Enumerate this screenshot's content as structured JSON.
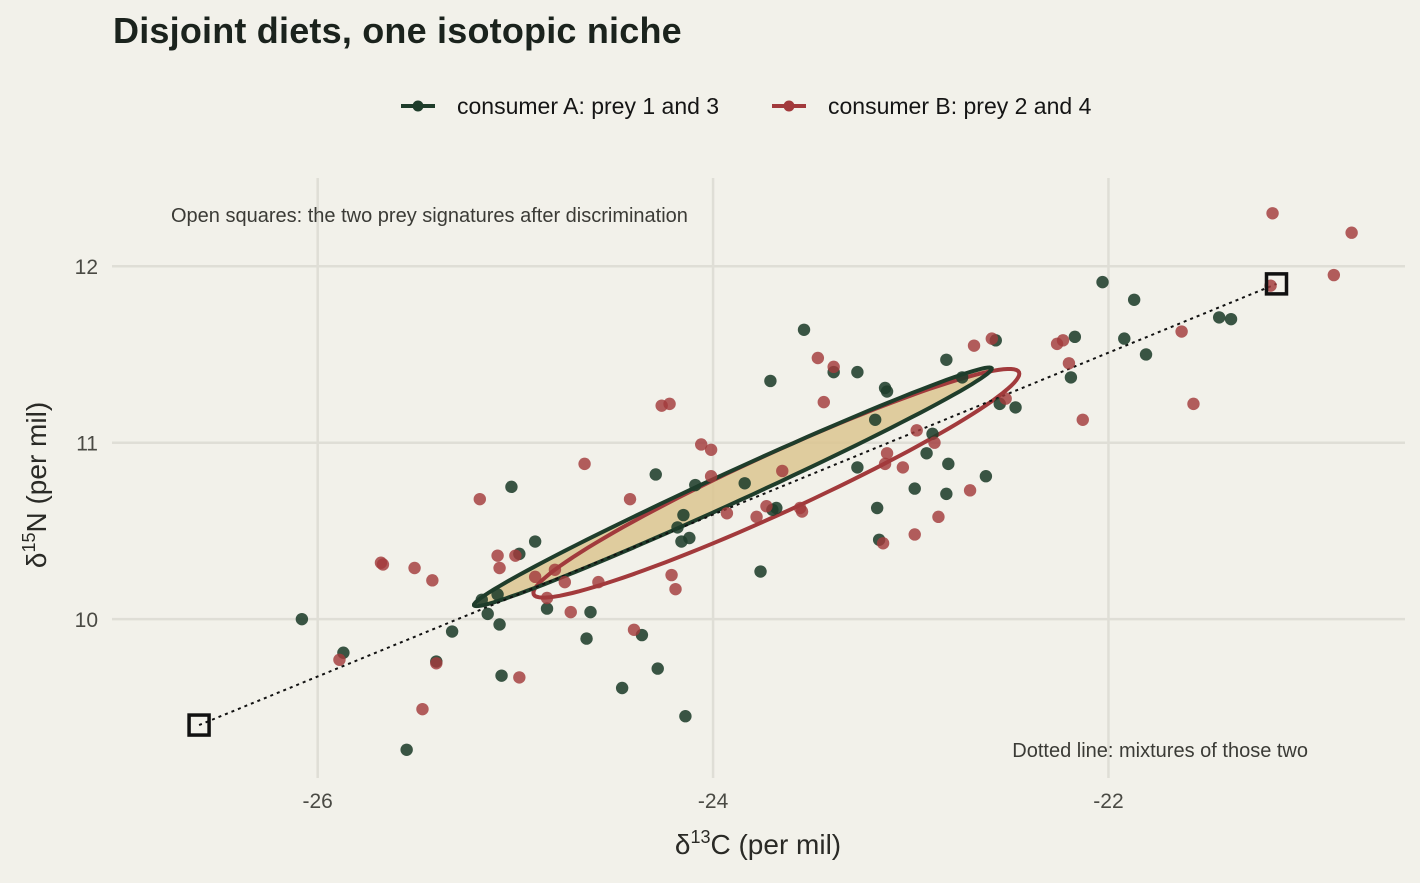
{
  "chart_data": {
    "type": "scatter",
    "title": "Disjoint diets, one isotopic niche",
    "xlabel": {
      "delta": "δ",
      "mass": "13",
      "rest": "C (per mil)"
    },
    "ylabel": {
      "delta": "δ",
      "mass": "15",
      "rest": "N (per mil)"
    },
    "xlim": [
      -27.0,
      -20.5
    ],
    "ylim": [
      9.1,
      12.5
    ],
    "x_ticks": [
      -26,
      -24,
      -22
    ],
    "x_tick_labels": [
      "-26",
      "-24",
      "-22"
    ],
    "y_ticks": [
      10,
      11,
      12
    ],
    "y_tick_labels": [
      "10",
      "11",
      "12"
    ],
    "grid": true,
    "legend_position": "top",
    "annotations": [
      {
        "text": "Open squares: the two prey signatures after discrimination",
        "position": "top-left"
      },
      {
        "text": "Dotted line: mixtures of those two",
        "position": "bottom-right"
      }
    ],
    "prey_signatures": [
      {
        "x": -26.6,
        "y": 9.4
      },
      {
        "x": -21.15,
        "y": 11.9
      }
    ],
    "mixing_line": {
      "from": [
        -26.6,
        9.4
      ],
      "to": [
        -21.15,
        11.9
      ],
      "style": "dotted"
    },
    "series": [
      {
        "name": "consumer A: prey 1 and 3",
        "color": "#1f3d2b",
        "ellipse": {
          "cx": -23.9,
          "cy": 10.75,
          "rx": 2.88,
          "ry": 0.153,
          "angle_deg": 24.6
        },
        "points": [
          [
            -26.08,
            10.0
          ],
          [
            -25.87,
            9.81
          ],
          [
            -25.55,
            9.26
          ],
          [
            -25.4,
            9.76
          ],
          [
            -25.32,
            9.93
          ],
          [
            -25.17,
            10.11
          ],
          [
            -25.14,
            10.03
          ],
          [
            -25.09,
            10.14
          ],
          [
            -25.08,
            9.97
          ],
          [
            -25.07,
            9.68
          ],
          [
            -25.02,
            10.75
          ],
          [
            -24.98,
            10.37
          ],
          [
            -24.9,
            10.44
          ],
          [
            -24.84,
            10.06
          ],
          [
            -24.62,
            10.04
          ],
          [
            -24.64,
            9.89
          ],
          [
            -24.46,
            9.61
          ],
          [
            -24.36,
            9.91
          ],
          [
            -24.29,
            10.82
          ],
          [
            -24.28,
            9.72
          ],
          [
            -24.18,
            10.52
          ],
          [
            -24.16,
            10.44
          ],
          [
            -24.15,
            10.59
          ],
          [
            -24.14,
            9.45
          ],
          [
            -24.12,
            10.46
          ],
          [
            -24.09,
            10.76
          ],
          [
            -23.84,
            10.77
          ],
          [
            -23.76,
            10.27
          ],
          [
            -23.71,
            11.35
          ],
          [
            -23.7,
            10.62
          ],
          [
            -23.68,
            10.63
          ],
          [
            -23.54,
            11.64
          ],
          [
            -23.39,
            11.4
          ],
          [
            -23.27,
            11.4
          ],
          [
            -23.27,
            10.86
          ],
          [
            -23.18,
            11.13
          ],
          [
            -23.16,
            10.45
          ],
          [
            -23.17,
            10.63
          ],
          [
            -23.13,
            11.31
          ],
          [
            -23.12,
            11.29
          ],
          [
            -22.98,
            10.74
          ],
          [
            -22.92,
            10.94
          ],
          [
            -22.89,
            11.05
          ],
          [
            -22.82,
            10.71
          ],
          [
            -22.81,
            10.88
          ],
          [
            -22.82,
            11.47
          ],
          [
            -22.74,
            11.37
          ],
          [
            -22.62,
            10.81
          ],
          [
            -22.57,
            11.58
          ],
          [
            -22.55,
            11.22
          ],
          [
            -22.47,
            11.2
          ],
          [
            -22.19,
            11.37
          ],
          [
            -22.17,
            11.6
          ],
          [
            -22.03,
            11.91
          ],
          [
            -21.92,
            11.59
          ],
          [
            -21.87,
            11.81
          ],
          [
            -21.81,
            11.5
          ],
          [
            -21.44,
            11.71
          ],
          [
            -21.38,
            11.7
          ]
        ]
      },
      {
        "name": "consumer B: prey 2 and 4",
        "color": "#a23a3c",
        "ellipse": {
          "cx": -23.68,
          "cy": 10.77,
          "rx": 2.7,
          "ry": 0.3,
          "angle_deg": 24.6
        },
        "points": [
          [
            -25.89,
            9.77
          ],
          [
            -25.68,
            10.32
          ],
          [
            -25.67,
            10.31
          ],
          [
            -25.51,
            10.29
          ],
          [
            -25.47,
            9.49
          ],
          [
            -25.42,
            10.22
          ],
          [
            -25.4,
            9.75
          ],
          [
            -25.18,
            10.68
          ],
          [
            -25.09,
            10.36
          ],
          [
            -25.08,
            10.29
          ],
          [
            -25.0,
            10.36
          ],
          [
            -24.98,
            9.67
          ],
          [
            -24.9,
            10.24
          ],
          [
            -24.84,
            10.12
          ],
          [
            -24.8,
            10.28
          ],
          [
            -24.75,
            10.21
          ],
          [
            -24.72,
            10.04
          ],
          [
            -24.65,
            10.88
          ],
          [
            -24.58,
            10.21
          ],
          [
            -24.4,
            9.94
          ],
          [
            -24.42,
            10.68
          ],
          [
            -24.26,
            11.21
          ],
          [
            -24.22,
            11.22
          ],
          [
            -24.21,
            10.25
          ],
          [
            -24.19,
            10.17
          ],
          [
            -24.06,
            10.99
          ],
          [
            -24.01,
            10.96
          ],
          [
            -24.01,
            10.81
          ],
          [
            -23.93,
            10.6
          ],
          [
            -23.78,
            10.58
          ],
          [
            -23.73,
            10.64
          ],
          [
            -23.65,
            10.84
          ],
          [
            -23.56,
            10.63
          ],
          [
            -23.55,
            10.61
          ],
          [
            -23.47,
            11.48
          ],
          [
            -23.44,
            11.23
          ],
          [
            -23.39,
            11.43
          ],
          [
            -23.14,
            10.43
          ],
          [
            -23.13,
            10.88
          ],
          [
            -23.12,
            10.94
          ],
          [
            -23.04,
            10.86
          ],
          [
            -22.98,
            10.48
          ],
          [
            -22.97,
            11.07
          ],
          [
            -22.88,
            11.0
          ],
          [
            -22.86,
            10.58
          ],
          [
            -22.7,
            10.73
          ],
          [
            -22.68,
            11.55
          ],
          [
            -22.59,
            11.59
          ],
          [
            -22.52,
            11.25
          ],
          [
            -22.26,
            11.56
          ],
          [
            -22.23,
            11.58
          ],
          [
            -22.2,
            11.45
          ],
          [
            -22.13,
            11.13
          ],
          [
            -21.63,
            11.63
          ],
          [
            -21.57,
            11.22
          ],
          [
            -21.18,
            11.89
          ],
          [
            -21.17,
            12.3
          ],
          [
            -20.86,
            11.95
          ],
          [
            -20.77,
            12.19
          ]
        ]
      }
    ]
  }
}
